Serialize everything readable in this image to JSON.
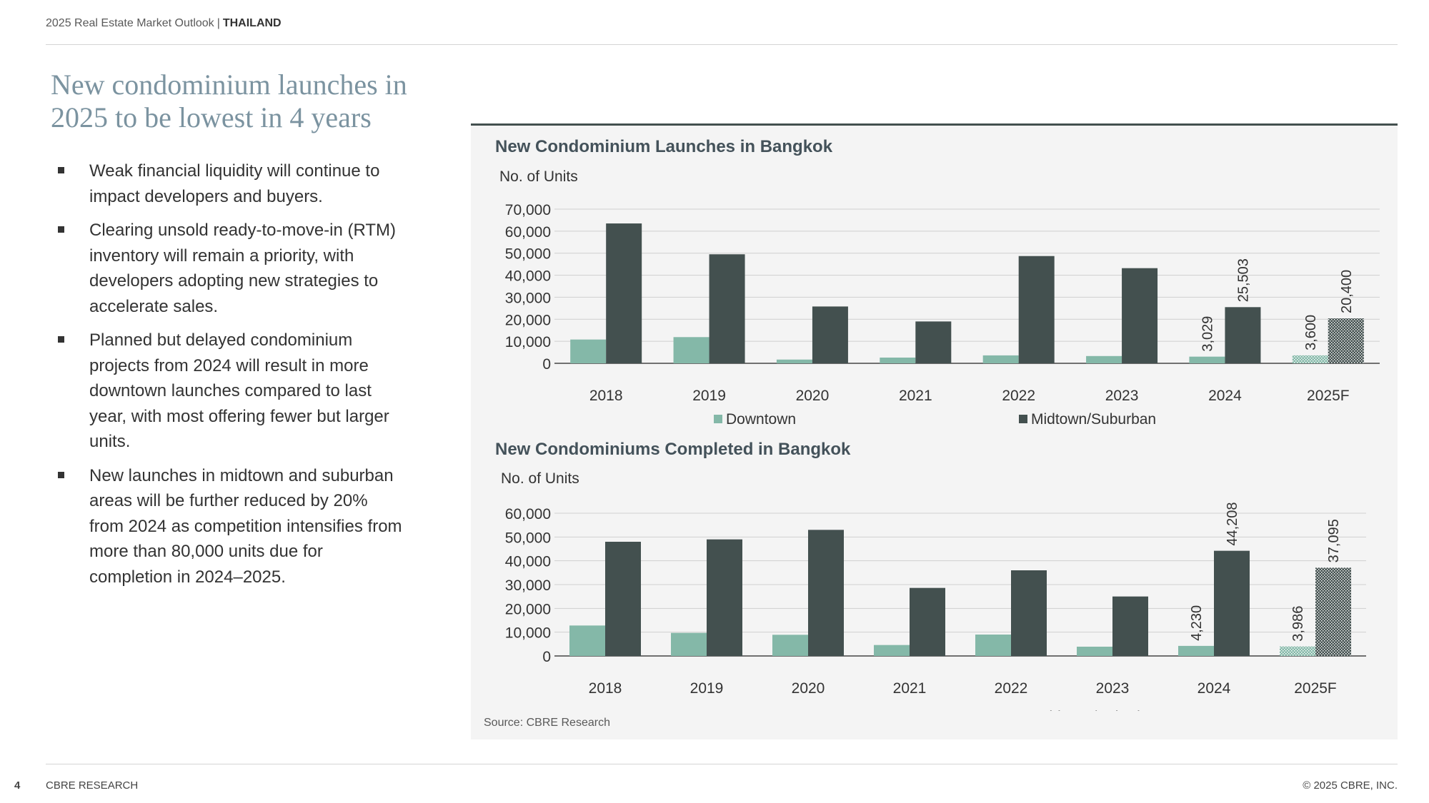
{
  "header": {
    "report": "2025 Real Estate Market Outlook",
    "separator": "|",
    "country": "THAILAND"
  },
  "title": "New condominium launches in 2025 to be lowest in 4 years",
  "bullets": [
    "Weak financial liquidity will continue to impact developers and buyers.",
    "Clearing unsold ready-to-move-in (RTM) inventory will remain a priority, with developers adopting new strategies to accelerate sales.",
    "Planned but delayed condominium projects from 2024 will result in more downtown launches compared to last year, with most offering fewer but larger units.",
    "New launches in midtown and suburban areas will be further reduced by 20% from 2024 as competition intensifies from more than 80,000 units due for completion in 2024–2025."
  ],
  "colors": {
    "downtown": "#84b8a8",
    "midtown": "#43504f",
    "title": "#7b93a0",
    "panel_rule": "#43504f"
  },
  "chart_data": [
    {
      "type": "bar",
      "title": "New Condominium Launches in Bangkok",
      "ylabel": "No. of Units",
      "categories": [
        "2018",
        "2019",
        "2020",
        "2021",
        "2022",
        "2023",
        "2024",
        "2025F"
      ],
      "ylim": [
        0,
        70000
      ],
      "yticks": [
        "0",
        "10,000",
        "20,000",
        "30,000",
        "40,000",
        "50,000",
        "60,000",
        "70,000"
      ],
      "grid": true,
      "legend": "bottom",
      "forecast_category": "2025F",
      "series": [
        {
          "name": "Downtown",
          "color": "#84b8a8",
          "values": [
            10800,
            11900,
            1700,
            2600,
            3600,
            3300,
            3029,
            3600
          ],
          "labels": [
            "",
            "",
            "",
            "",
            "",
            "",
            "3,029",
            "3,600"
          ]
        },
        {
          "name": "Midtown/Suburban",
          "color": "#43504f",
          "values": [
            63500,
            49500,
            25800,
            19000,
            48700,
            43200,
            25503,
            20400
          ],
          "labels": [
            "",
            "",
            "",
            "",
            "",
            "",
            "25,503",
            "20,400"
          ]
        }
      ]
    },
    {
      "type": "bar",
      "title": "New Condominiums Completed in Bangkok",
      "ylabel": "No. of Units",
      "categories": [
        "2018",
        "2019",
        "2020",
        "2021",
        "2022",
        "2023",
        "2024",
        "2025F"
      ],
      "ylim": [
        0,
        60000
      ],
      "yticks": [
        "0",
        "10,000",
        "20,000",
        "30,000",
        "40,000",
        "50,000",
        "60,000"
      ],
      "grid": true,
      "legend": "bottom",
      "forecast_category": "2025F",
      "series": [
        {
          "name": "Downtown",
          "color": "#84b8a8",
          "values": [
            12800,
            9700,
            8900,
            4600,
            9000,
            3900,
            4230,
            3986
          ],
          "labels": [
            "",
            "",
            "",
            "",
            "",
            "",
            "4,230",
            "3,986"
          ]
        },
        {
          "name": "Midtown/Suburban",
          "color": "#43504f",
          "values": [
            48000,
            49000,
            53000,
            28600,
            36000,
            25000,
            44208,
            37095
          ],
          "labels": [
            "",
            "",
            "",
            "",
            "",
            "",
            "44,208",
            "37,095"
          ]
        }
      ]
    }
  ],
  "source": "Source: CBRE Research",
  "footer": {
    "page": "4",
    "brand": "CBRE RESEARCH",
    "copyright": "© 2025 CBRE, INC."
  }
}
